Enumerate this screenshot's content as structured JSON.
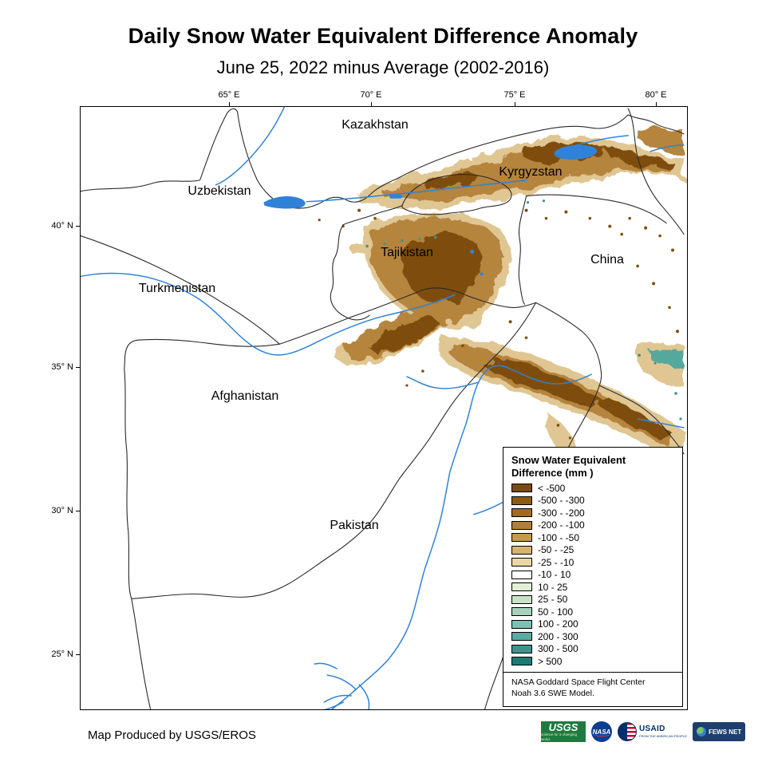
{
  "title": "Daily Snow Water Equivalent Difference Anomaly",
  "subtitle": "June 25, 2022 minus Average (2002-2016)",
  "map": {
    "x_ticks": [
      "65° E",
      "70° E",
      "75° E",
      "80° E"
    ],
    "y_ticks": [
      "40° N",
      "35° N",
      "30° N",
      "25° N"
    ],
    "country_labels": [
      "Kazakhstan",
      "Kyrgyzstan",
      "Uzbekistan",
      "Tajikistan",
      "Turkmenistan",
      "China",
      "Afghanistan",
      "Pakistan"
    ]
  },
  "legend": {
    "title_line1": "Snow Water Equivalent",
    "title_line2": "Difference (mm )",
    "classes": [
      {
        "label": "< -500",
        "color": "#7a4a10"
      },
      {
        "label": "-500 - -300",
        "color": "#8d5a14"
      },
      {
        "label": "-300 - -200",
        "color": "#a06c24"
      },
      {
        "label": "-200 - -100",
        "color": "#b08036"
      },
      {
        "label": "-100 - -50",
        "color": "#c49a52"
      },
      {
        "label": "-50 - -25",
        "color": "#d6b470"
      },
      {
        "label": "-25 - -10",
        "color": "#ead7a2"
      },
      {
        "label": "-10 - 10",
        "color": "#ffffff"
      },
      {
        "label": "10 - 25",
        "color": "#e2efd6"
      },
      {
        "label": "25 - 50",
        "color": "#c8e3c4"
      },
      {
        "label": "50 - 100",
        "color": "#a5d2bd"
      },
      {
        "label": "100 - 200",
        "color": "#7fc0b2"
      },
      {
        "label": "200 - 300",
        "color": "#5aaba0"
      },
      {
        "label": "300 - 500",
        "color": "#3d948c"
      },
      {
        "label": "> 500",
        "color": "#1d7a74"
      }
    ],
    "footnote_line1": "NASA Goddard Space Flight Center",
    "footnote_line2": "Noah 3.6 SWE Model."
  },
  "footer": {
    "credit": "Map Produced by USGS/EROS"
  },
  "logos": {
    "usgs": "USGS",
    "usgs_tagline": "science for a changing world",
    "nasa": "NASA",
    "usaid": "USAID",
    "usaid_tagline": "FROM THE AMERICAN PEOPLE",
    "fewsnet": "FEWS NET"
  }
}
